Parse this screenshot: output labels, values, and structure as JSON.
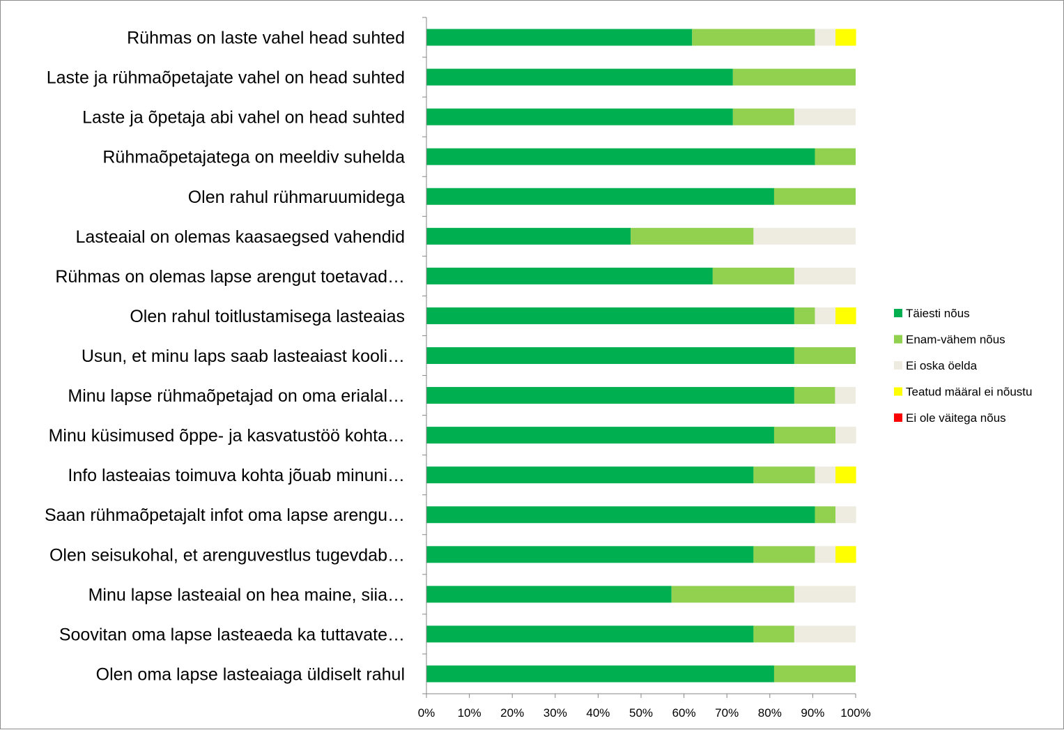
{
  "chart_data": {
    "type": "bar",
    "orientation": "horizontal",
    "stacked": "percent",
    "title": "",
    "xlabel": "",
    "ylabel": "",
    "xlim": [
      0,
      100
    ],
    "x_ticks": [
      "0%",
      "10%",
      "20%",
      "30%",
      "40%",
      "50%",
      "60%",
      "70%",
      "80%",
      "90%",
      "100%"
    ],
    "grid": false,
    "legend_position": "right",
    "categories": [
      "Rühmas on laste vahel head suhted",
      "Laste ja rühmaõpetajate vahel on head suhted",
      "Laste ja õpetaja abi vahel on head suhted",
      "Rühmaõpetajatega on meeldiv suhelda",
      "Olen rahul rühmaruumidega",
      "Lasteaial on olemas kaasaegsed vahendid",
      "Rühmas on olemas lapse arengut toetavad…",
      "Olen rahul toitlustamisega lasteaias",
      "Usun, et minu laps saab lasteaiast kooli…",
      "Minu lapse rühmaõpetajad on oma erialal…",
      "Minu küsimused õppe- ja kasvatustöö kohta…",
      "Info lasteaias toimuva kohta jõuab minuni…",
      "Saan rühmaõpetajalt infot oma lapse arengu…",
      "Olen seisukohal, et arenguvestlus tugevdab…",
      "Minu lapse lasteaial on hea maine, siia…",
      "Soovitan oma lapse lasteaeda ka tuttavate…",
      "Olen oma lapse lasteaiaga üldiselt rahul"
    ],
    "series": [
      {
        "name": "Täiesti nõus",
        "color": "#00b050",
        "values": [
          61.9,
          71.4,
          71.4,
          90.5,
          81.0,
          47.6,
          66.7,
          85.7,
          85.7,
          85.7,
          81.0,
          76.2,
          90.5,
          76.2,
          57.1,
          76.2,
          81.0
        ]
      },
      {
        "name": "Enam-vähem nõus",
        "color": "#92d050",
        "values": [
          28.6,
          28.6,
          14.3,
          9.5,
          19.0,
          28.6,
          19.0,
          4.8,
          14.3,
          9.5,
          14.3,
          14.3,
          4.8,
          14.3,
          28.6,
          9.5,
          19.0
        ]
      },
      {
        "name": "Ei oska öelda",
        "color": "#eeece1",
        "values": [
          4.8,
          0,
          14.3,
          0,
          0,
          23.8,
          14.3,
          4.8,
          0,
          4.8,
          4.8,
          4.8,
          4.8,
          4.8,
          14.3,
          14.3,
          0
        ]
      },
      {
        "name": "Teatud määral ei nõustu",
        "color": "#ffff00",
        "values": [
          4.8,
          0,
          0,
          0,
          0,
          0,
          0,
          4.8,
          0,
          0,
          0,
          4.8,
          0,
          4.8,
          0,
          0,
          0
        ]
      },
      {
        "name": "Ei ole väitega nõus",
        "color": "#ff0000",
        "values": [
          0,
          0,
          0,
          0,
          0,
          0,
          0,
          0,
          0,
          0,
          0,
          0,
          0,
          0,
          0,
          0,
          0
        ]
      }
    ]
  }
}
